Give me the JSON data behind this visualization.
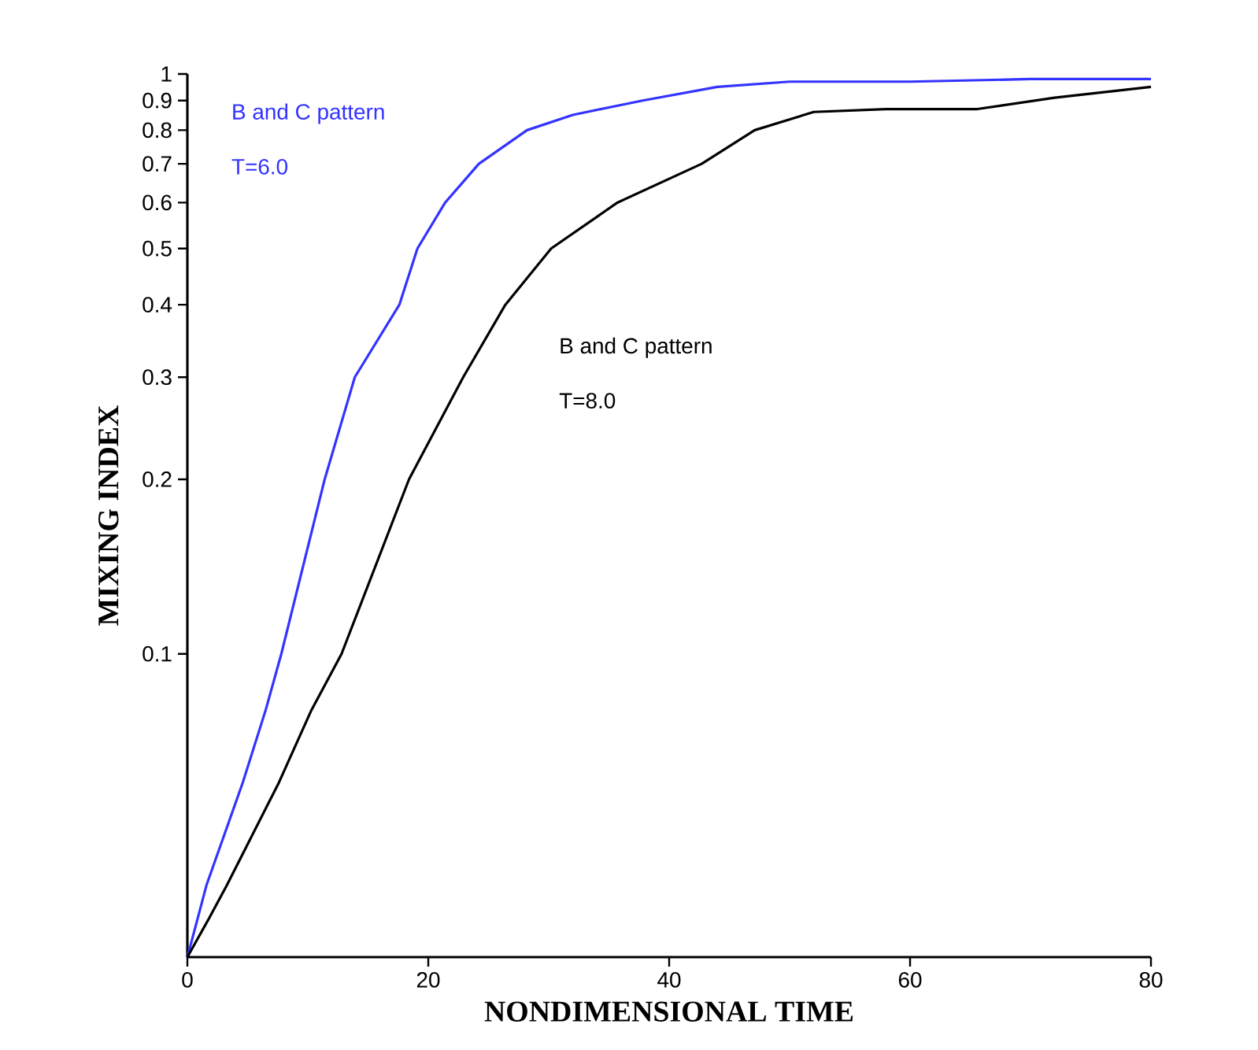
{
  "chart_data": {
    "type": "line",
    "xlabel": "NONDIMENSIONAL TIME",
    "ylabel": "MIXING INDEX",
    "log": "y",
    "grid": false,
    "marker": "none",
    "line_style": "solid",
    "xlim": [
      0,
      80
    ],
    "ylim": [
      0.03,
      1
    ],
    "xticks": [
      0,
      20,
      40,
      60,
      80
    ],
    "yticks": [
      0.1,
      0.2,
      0.3,
      0.4,
      0.5,
      0.6,
      0.7,
      0.8,
      0.9,
      1
    ],
    "annotations": [
      "B and C pattern",
      "T=6.0",
      "B and C pattern",
      "T=8.0"
    ],
    "series": [
      {
        "color": "#3333ff",
        "x": [
          0,
          1.6,
          4.6,
          6.5,
          7.8,
          11.4,
          13.9,
          17.6,
          19.1,
          21.4,
          24.2,
          28.2,
          32,
          37.8,
          44,
          50,
          60,
          70,
          80
        ],
        "values": [
          0.03,
          0.04,
          0.06,
          0.08,
          0.1,
          0.2,
          0.3,
          0.4,
          0.5,
          0.6,
          0.7,
          0.8,
          0.85,
          0.9,
          0.95,
          0.97,
          0.97,
          0.98,
          0.98
        ]
      },
      {
        "color": "#000000",
        "x": [
          0,
          1.8,
          3.3,
          7.6,
          10.3,
          12.8,
          18.4,
          22.9,
          26.4,
          30.2,
          35.7,
          42.7,
          47.1,
          52,
          58,
          65.6,
          72,
          80
        ],
        "values": [
          0.03,
          0.035,
          0.04,
          0.06,
          0.08,
          0.1,
          0.2,
          0.3,
          0.4,
          0.5,
          0.6,
          0.7,
          0.8,
          0.86,
          0.87,
          0.87,
          0.91,
          0.95
        ]
      }
    ]
  }
}
